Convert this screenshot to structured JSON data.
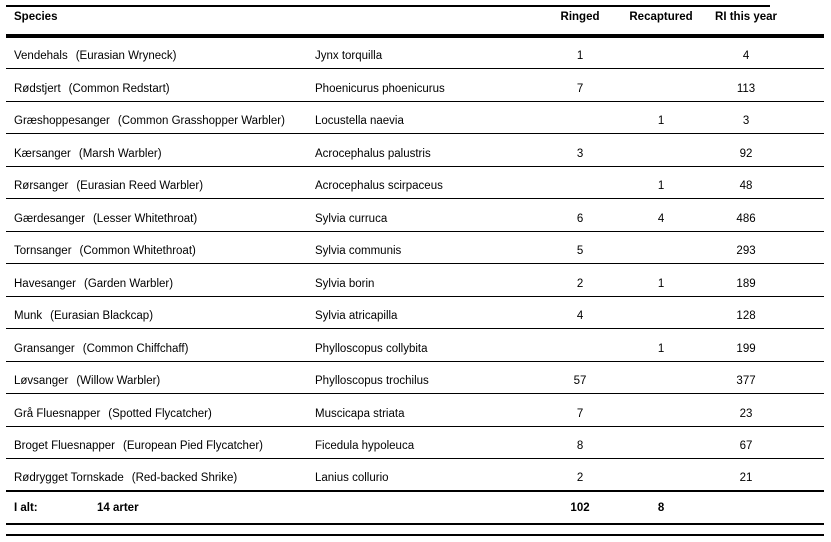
{
  "colors": {
    "background": "#ffffff",
    "text": "#000000",
    "rule": "#000000"
  },
  "table": {
    "headers": {
      "species": "Species",
      "ringed": "Ringed",
      "recaptured": "Recaptured",
      "ri_this_year": "RI this year"
    },
    "rows": [
      {
        "danish": "Vendehals",
        "english": "(Eurasian Wryneck)",
        "scientific": "Jynx torquilla",
        "ringed": "1",
        "recaptured": "",
        "ri": "4"
      },
      {
        "danish": "Rødstjert",
        "english": "(Common Redstart)",
        "scientific": "Phoenicurus phoenicurus",
        "ringed": "7",
        "recaptured": "",
        "ri": "113"
      },
      {
        "danish": "Græshoppesanger",
        "english": "(Common Grasshopper Warbler)",
        "scientific": "Locustella naevia",
        "ringed": "",
        "recaptured": "1",
        "ri": "3"
      },
      {
        "danish": "Kærsanger",
        "english": "(Marsh Warbler)",
        "scientific": "Acrocephalus palustris",
        "ringed": "3",
        "recaptured": "",
        "ri": "92"
      },
      {
        "danish": "Rørsanger",
        "english": "(Eurasian Reed Warbler)",
        "scientific": "Acrocephalus scirpaceus",
        "ringed": "",
        "recaptured": "1",
        "ri": "48"
      },
      {
        "danish": "Gærdesanger",
        "english": "(Lesser Whitethroat)",
        "scientific": "Sylvia curruca",
        "ringed": "6",
        "recaptured": "4",
        "ri": "486"
      },
      {
        "danish": "Tornsanger",
        "english": "(Common Whitethroat)",
        "scientific": "Sylvia communis",
        "ringed": "5",
        "recaptured": "",
        "ri": "293"
      },
      {
        "danish": "Havesanger",
        "english": "(Garden Warbler)",
        "scientific": "Sylvia borin",
        "ringed": "2",
        "recaptured": "1",
        "ri": "189"
      },
      {
        "danish": "Munk",
        "english": "(Eurasian Blackcap)",
        "scientific": "Sylvia atricapilla",
        "ringed": "4",
        "recaptured": "",
        "ri": "128"
      },
      {
        "danish": "Gransanger",
        "english": "(Common Chiffchaff)",
        "scientific": "Phylloscopus collybita",
        "ringed": "",
        "recaptured": "1",
        "ri": "199"
      },
      {
        "danish": "Løvsanger",
        "english": "(Willow Warbler)",
        "scientific": "Phylloscopus trochilus",
        "ringed": "57",
        "recaptured": "",
        "ri": "377"
      },
      {
        "danish": "Grå Fluesnapper",
        "english": "(Spotted Flycatcher)",
        "scientific": "Muscicapa striata",
        "ringed": "7",
        "recaptured": "",
        "ri": "23"
      },
      {
        "danish": "Broget Fluesnapper",
        "english": "(European Pied Flycatcher)",
        "scientific": "Ficedula hypoleuca",
        "ringed": "8",
        "recaptured": "",
        "ri": "67"
      },
      {
        "danish": "Rødrygget Tornskade",
        "english": "(Red-backed Shrike)",
        "scientific": "Lanius collurio",
        "ringed": "2",
        "recaptured": "",
        "ri": "21"
      }
    ],
    "total": {
      "label": "I alt:",
      "count": "14 arter",
      "ringed": "102",
      "recaptured": "8",
      "ri": ""
    }
  }
}
